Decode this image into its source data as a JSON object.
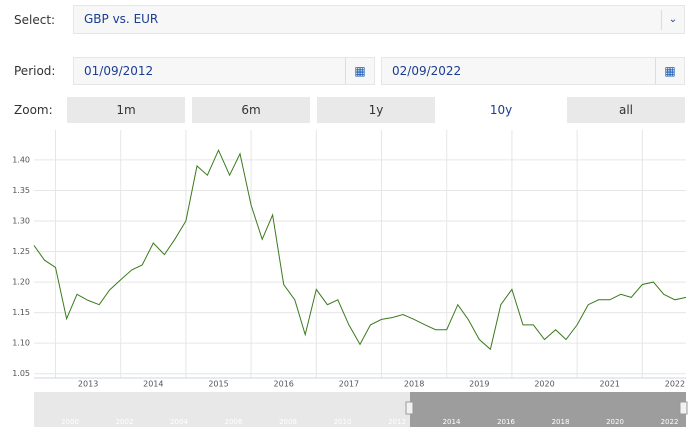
{
  "form": {
    "select_label": "Select:",
    "select_value": "GBP vs. EUR",
    "period_label": "Period:",
    "from": "01/09/2012",
    "to": "02/09/2022",
    "zoom_label": "Zoom:",
    "zoom_buttons": [
      "1m",
      "6m",
      "1y",
      "10y",
      "all"
    ],
    "active_zoom": 3
  },
  "chart_data": {
    "type": "line",
    "x": [
      2012.67,
      2012.83,
      2013,
      2013.17,
      2013.33,
      2013.5,
      2013.67,
      2013.83,
      2014,
      2014.17,
      2014.33,
      2014.5,
      2014.67,
      2014.83,
      2015,
      2015.17,
      2015.33,
      2015.5,
      2015.67,
      2015.83,
      2016,
      2016.17,
      2016.33,
      2016.5,
      2016.67,
      2016.83,
      2017,
      2017.17,
      2017.33,
      2017.5,
      2017.67,
      2017.83,
      2018,
      2018.17,
      2018.33,
      2018.5,
      2018.67,
      2018.83,
      2019,
      2019.17,
      2019.33,
      2019.5,
      2019.67,
      2019.83,
      2020,
      2020.17,
      2020.33,
      2020.5,
      2020.67,
      2020.83,
      2021,
      2021.17,
      2021.33,
      2021.5,
      2021.67,
      2021.83,
      2022,
      2022.17,
      2022.33,
      2022.5,
      2022.67
    ],
    "series": [
      {
        "color": "#3b7a1e",
        "values": [
          1.26,
          1.236,
          1.224,
          1.14,
          1.18,
          1.17,
          1.163,
          1.187,
          1.204,
          1.22,
          1.228,
          1.264,
          1.245,
          1.27,
          1.3,
          1.39,
          1.375,
          1.416,
          1.375,
          1.41,
          1.326,
          1.27,
          1.31,
          1.196,
          1.171,
          1.114,
          1.188,
          1.163,
          1.171,
          1.13,
          1.098,
          1.13,
          1.139,
          1.142,
          1.147,
          1.139,
          1.13,
          1.122,
          1.122,
          1.163,
          1.139,
          1.106,
          1.09,
          1.163,
          1.188,
          1.13,
          1.13,
          1.106,
          1.122,
          1.106,
          1.13,
          1.163,
          1.171,
          1.171,
          1.18,
          1.175,
          1.196,
          1.2,
          1.18,
          1.171,
          1.175
        ]
      }
    ],
    "xlim": [
      2012.67,
      2022.67
    ],
    "xticks": [
      2013,
      2014,
      2015,
      2016,
      2017,
      2018,
      2019,
      2020,
      2021,
      2022
    ],
    "ylim": [
      1.043,
      1.449
    ],
    "yticks": [
      1.05,
      {
        "value": 1.1,
        "label": "1.10"
      },
      1.15,
      {
        "value": 1.2,
        "label": "1.20"
      },
      1.25,
      {
        "value": 1.3,
        "label": "1.30"
      },
      1.35,
      {
        "value": 1.4,
        "label": "1.40"
      }
    ],
    "grid": true
  },
  "navigator": {
    "labels": [
      "2000",
      "2002",
      "2004",
      "2006",
      "2008",
      "2010",
      "2012",
      "2014",
      "2016",
      "2018",
      "2020",
      "2022"
    ]
  }
}
